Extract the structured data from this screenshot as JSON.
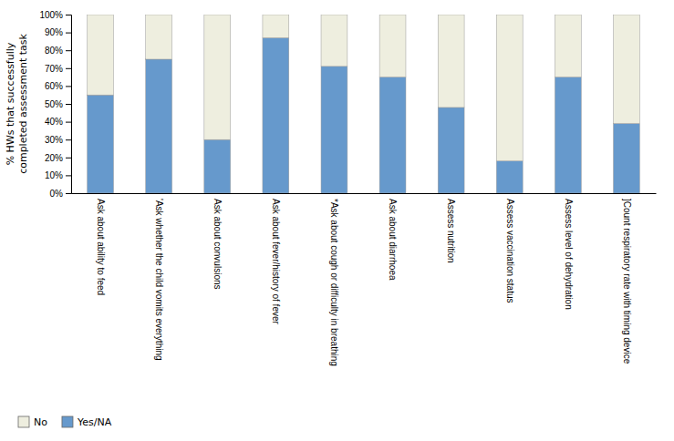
{
  "chart_data": {
    "type": "bar",
    "stacked": true,
    "categories": [
      "Ask about ability to feed",
      "'Ask whether the child vomits everything",
      "Ask about convulsions",
      "Ask about fever/history of fever",
      "*Ask about cough or difficulty in breathing",
      "Ask about diarrhoea",
      "Assess nutrition",
      "Assess vaccination status",
      "Assess level of dehydration",
      "]Count respiratory rate with timing device"
    ],
    "series": [
      {
        "name": "Yes/NA",
        "color": "#6699CC",
        "values": [
          55,
          75,
          30,
          87,
          71,
          65,
          48,
          18,
          65,
          39
        ]
      },
      {
        "name": "No",
        "color": "#EEEEDf",
        "values": [
          45,
          25,
          70,
          13,
          29,
          35,
          52,
          82,
          35,
          61
        ]
      }
    ],
    "ylabel": "% HWs that successfully\ncompleted assessment task",
    "ylim": [
      0,
      100
    ],
    "yticks": [
      {
        "value": 0,
        "label": "0%"
      },
      {
        "value": 10,
        "label": "10%"
      },
      {
        "value": 20,
        "label": "20%"
      },
      {
        "value": 30,
        "label": "30%"
      },
      {
        "value": 40,
        "label": "40%"
      },
      {
        "value": 50,
        "label": "50%"
      },
      {
        "value": 60,
        "label": "60%"
      },
      {
        "value": 70,
        "label": "70%"
      },
      {
        "value": 80,
        "label": "80%"
      },
      {
        "value": 90,
        "label": "90%"
      },
      {
        "value": 100,
        "label": "100%"
      }
    ],
    "grid": false,
    "legend": "bottom"
  }
}
